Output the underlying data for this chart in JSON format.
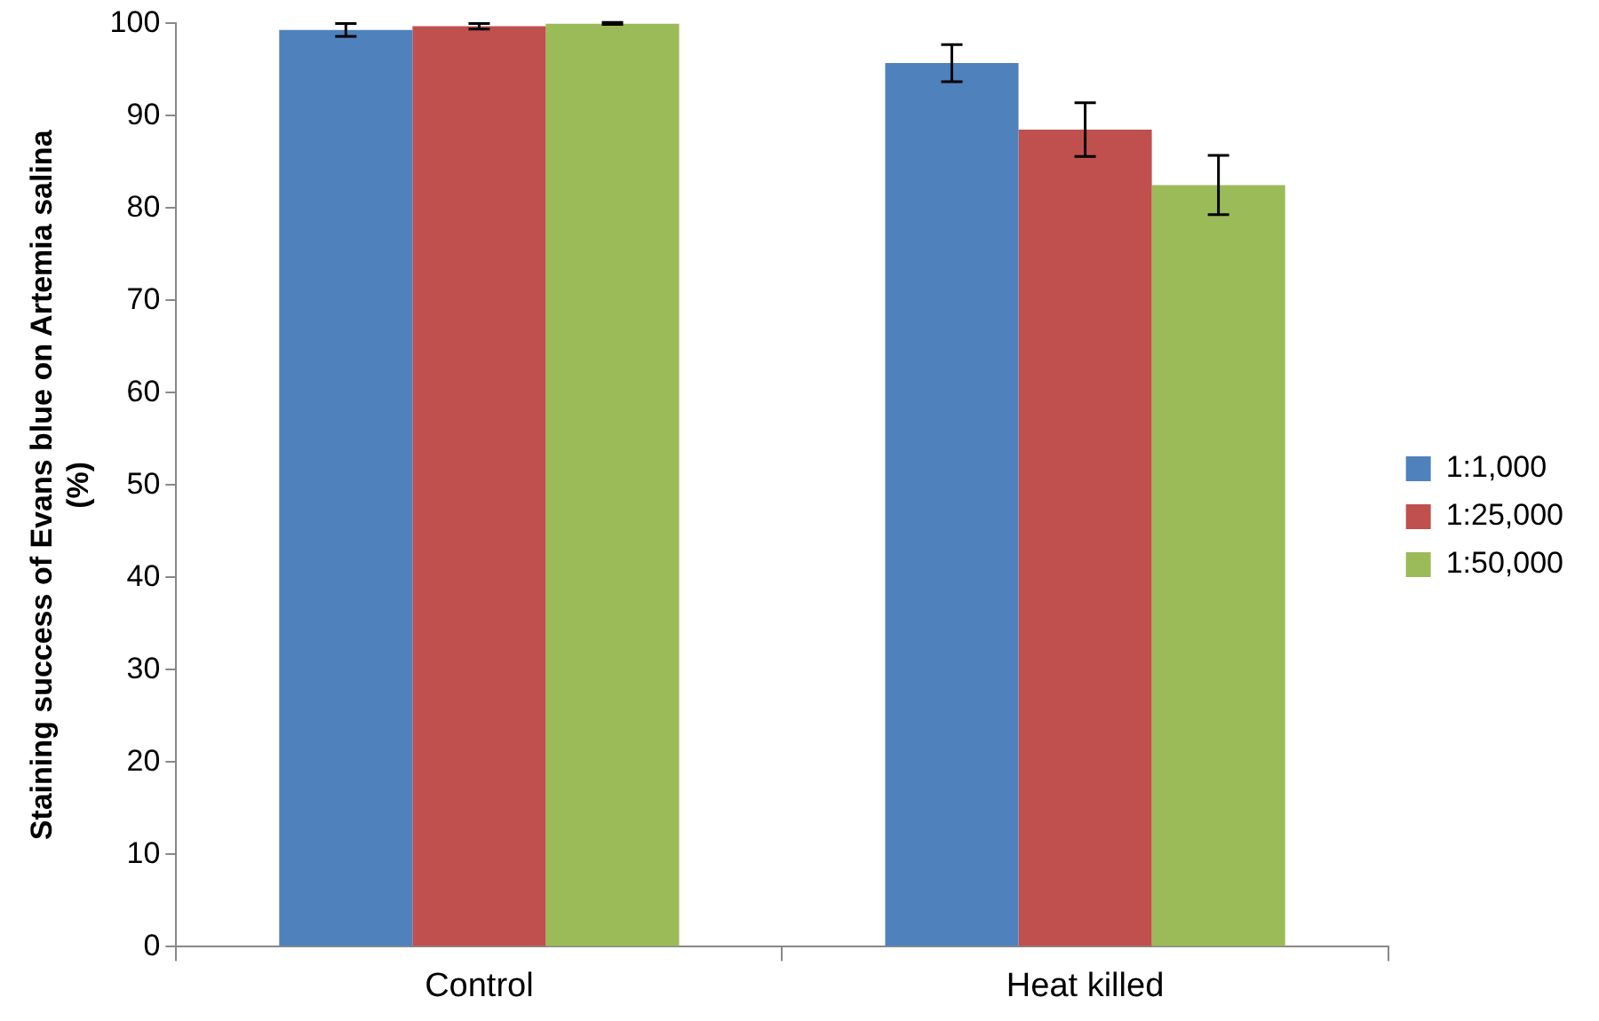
{
  "chart_data": {
    "type": "bar",
    "ylabel": "Staining success of Evans blue on Artemia salina (%)",
    "categories": [
      "Control",
      "Heat killed"
    ],
    "series": [
      {
        "name": "1:1,000",
        "color": "#4f81bd",
        "values": [
          99.3,
          95.7
        ],
        "errors": [
          0.7,
          2.0
        ]
      },
      {
        "name": "1:25,000",
        "color": "#c0504d",
        "values": [
          99.7,
          88.5
        ],
        "errors": [
          0.3,
          2.9
        ]
      },
      {
        "name": "1:50,000",
        "color": "#9bbb59",
        "values": [
          100,
          82.5
        ],
        "errors": [
          0.1,
          3.2
        ]
      }
    ],
    "ylim": [
      0,
      100
    ],
    "yticks": [
      0,
      10,
      20,
      30,
      40,
      50,
      60,
      70,
      80,
      90,
      100
    ],
    "grid": false,
    "legend": "right"
  }
}
